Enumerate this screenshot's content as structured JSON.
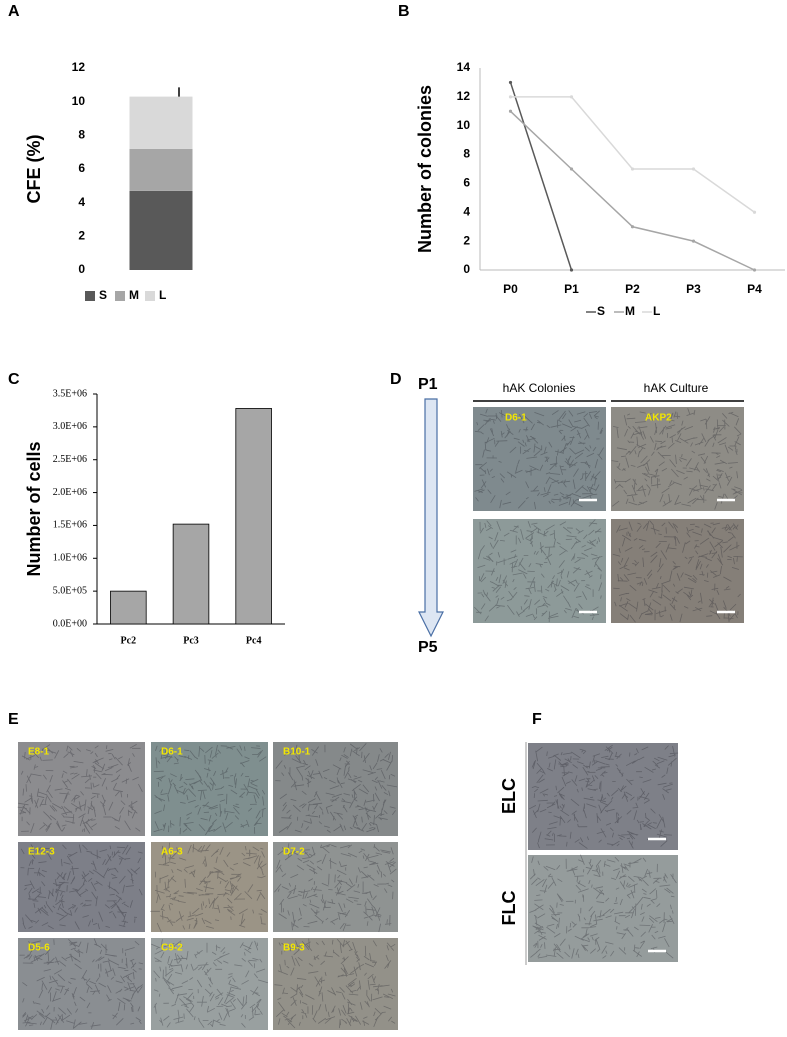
{
  "chart_data": [
    {
      "type": "stacked_bar",
      "panel_label": "A",
      "ylabel": "CFE (%)",
      "categories": [
        null
      ],
      "series": [
        {
          "name": "S",
          "color": "#595959",
          "values": [
            4.7
          ]
        },
        {
          "name": "M",
          "color": "#a6a6a6",
          "values": [
            2.5
          ]
        },
        {
          "name": "L",
          "color": "#d9d9d9",
          "values": [
            3.1
          ]
        }
      ],
      "error": [
        0.55
      ],
      "ylim": [
        0,
        12
      ],
      "yticks": [
        0,
        2,
        4,
        6,
        8,
        10,
        12
      ]
    },
    {
      "type": "line",
      "panel_label": "B",
      "ylabel": "Number of colonies",
      "categories": [
        "P0",
        "P1",
        "P2",
        "P3",
        "P4"
      ],
      "series": [
        {
          "name": "S",
          "color": "#595959",
          "values": [
            13,
            0,
            null,
            null,
            null
          ]
        },
        {
          "name": "M",
          "color": "#a6a6a6",
          "values": [
            11,
            7,
            3,
            2,
            0
          ]
        },
        {
          "name": "L",
          "color": "#d9d9d9",
          "values": [
            12,
            12,
            7,
            7,
            4
          ]
        }
      ],
      "ylim": [
        0,
        14
      ],
      "yticks": [
        0,
        2,
        4,
        6,
        8,
        10,
        12,
        14
      ]
    },
    {
      "type": "bar",
      "panel_label": "C",
      "ylabel": "Number of cells",
      "categories": [
        "Pc2",
        "Pc3",
        "Pc4"
      ],
      "values": [
        500000,
        1520000,
        3280000
      ],
      "color": "#a6a6a6",
      "ylim": [
        0,
        3500000
      ],
      "yticks": [
        {
          "value": 0,
          "label": "0.0E+00"
        },
        {
          "value": 500000,
          "label": "5.0E+05"
        },
        {
          "value": 1000000,
          "label": "1.0E+06"
        },
        {
          "value": 1500000,
          "label": "1.5E+06"
        },
        {
          "value": 2000000,
          "label": "2.0E+06"
        },
        {
          "value": 2500000,
          "label": "2.5E+06"
        },
        {
          "value": 3000000,
          "label": "3.0E+06"
        },
        {
          "value": 3500000,
          "label": "3.5E+06"
        }
      ]
    }
  ],
  "panel_d": {
    "label": "D",
    "start": "P1",
    "end": "P5",
    "columns": [
      "hAK Colonies",
      "hAK Culture"
    ],
    "image_labels": [
      "D6-1",
      "AKP2"
    ]
  },
  "panel_e": {
    "label": "E",
    "image_labels": [
      "E8-1",
      "D6-1",
      "B10-1",
      "E12-3",
      "A6-3",
      "D7-2",
      "D5-6",
      "C9-2",
      "B9-3"
    ]
  },
  "panel_f": {
    "label": "F",
    "rows": [
      "ELC",
      "FLC"
    ]
  }
}
